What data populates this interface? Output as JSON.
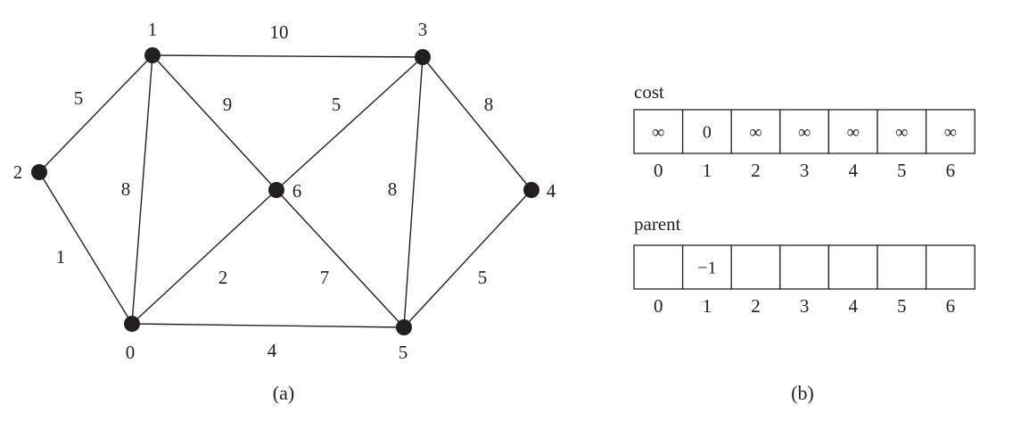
{
  "graph": {
    "nodes": [
      {
        "id": "0",
        "label": "0"
      },
      {
        "id": "1",
        "label": "1"
      },
      {
        "id": "2",
        "label": "2"
      },
      {
        "id": "3",
        "label": "3"
      },
      {
        "id": "4",
        "label": "4"
      },
      {
        "id": "5",
        "label": "5"
      },
      {
        "id": "6",
        "label": "6"
      }
    ],
    "edges": [
      {
        "from": "1",
        "to": "3",
        "weight": "10"
      },
      {
        "from": "1",
        "to": "2",
        "weight": "5"
      },
      {
        "from": "1",
        "to": "6",
        "weight": "9"
      },
      {
        "from": "6",
        "to": "3",
        "weight": "5"
      },
      {
        "from": "3",
        "to": "4",
        "weight": "8"
      },
      {
        "from": "1",
        "to": "0",
        "weight": "8"
      },
      {
        "from": "3",
        "to": "5",
        "weight": "8"
      },
      {
        "from": "2",
        "to": "0",
        "weight": "1"
      },
      {
        "from": "0",
        "to": "6",
        "weight": "2"
      },
      {
        "from": "6",
        "to": "5",
        "weight": "7"
      },
      {
        "from": "4",
        "to": "5",
        "weight": "5"
      },
      {
        "from": "0",
        "to": "5",
        "weight": "4"
      }
    ],
    "caption": "(a)"
  },
  "arrays": {
    "cost": {
      "label": "cost",
      "values": [
        "∞",
        "0",
        "∞",
        "∞",
        "∞",
        "∞",
        "∞"
      ],
      "indices": [
        "0",
        "1",
        "2",
        "3",
        "4",
        "5",
        "6"
      ]
    },
    "parent": {
      "label": "parent",
      "values": [
        "",
        "−1",
        "",
        "",
        "",
        "",
        ""
      ],
      "indices": [
        "0",
        "1",
        "2",
        "3",
        "4",
        "5",
        "6"
      ]
    },
    "caption": "(b)"
  }
}
